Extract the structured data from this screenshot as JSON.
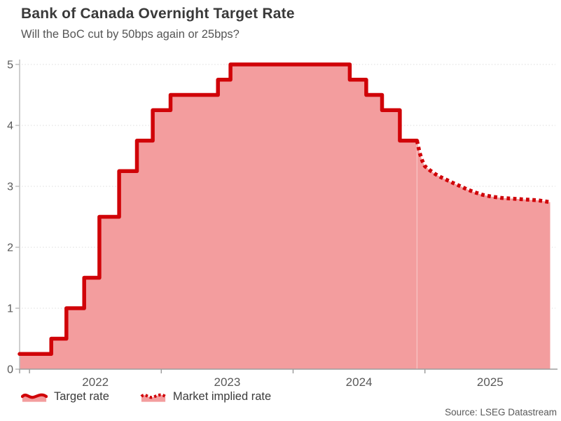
{
  "header": {
    "title": "Bank of Canada Overnight Target Rate",
    "subtitle": "Will the BoC cut by 50bps again or 25bps?"
  },
  "legend": [
    {
      "label": "Target rate",
      "style": "solid"
    },
    {
      "label": "Market implied rate",
      "style": "dotted"
    }
  ],
  "source": "Source: LSEG Datastream",
  "colors": {
    "line": "#d00308",
    "fill": "#f39d9e",
    "grid": "#dcdcdc",
    "axis_y": "#bdbdbd",
    "axis_x": "#9e9e9e",
    "tick_text": "#595959",
    "title_text": "#3a3a3a",
    "subtitle_text": "#555555",
    "legend_text": "#3b3b3b",
    "source_text": "#595959",
    "seam": "#f8c6c6"
  },
  "chart_data": {
    "type": "line",
    "title": "Bank of Canada Overnight Target Rate",
    "subtitle": "Will the BoC cut by 50bps again or 25bps?",
    "xlabel": "",
    "ylabel": "",
    "xlim": [
      2021.925,
      2025.99
    ],
    "ylim": [
      0,
      5
    ],
    "yticks": [
      0,
      1,
      2,
      3,
      4,
      5
    ],
    "xticks": [
      2022,
      2023,
      2024,
      2025
    ],
    "xtick_labels": [
      "2022",
      "2023",
      "2024",
      "2025"
    ],
    "grid": "horizontal-dotted",
    "legend_position": "bottom-left",
    "series": [
      {
        "name": "Target rate",
        "style": "step-solid",
        "fill_under": true,
        "points": [
          [
            2021.925,
            0.25
          ],
          [
            2022.165,
            0.5
          ],
          [
            2022.28,
            1.0
          ],
          [
            2022.415,
            1.5
          ],
          [
            2022.53,
            2.5
          ],
          [
            2022.68,
            3.25
          ],
          [
            2022.815,
            3.75
          ],
          [
            2022.935,
            4.25
          ],
          [
            2023.07,
            4.5
          ],
          [
            2023.43,
            4.75
          ],
          [
            2023.525,
            5.0
          ],
          [
            2024.43,
            4.75
          ],
          [
            2024.555,
            4.5
          ],
          [
            2024.675,
            4.25
          ],
          [
            2024.81,
            3.75
          ],
          [
            2024.94,
            3.75
          ]
        ]
      },
      {
        "name": "Market implied rate",
        "style": "dotted",
        "fill_under": true,
        "points": [
          [
            2024.94,
            3.75
          ],
          [
            2024.96,
            3.55
          ],
          [
            2024.98,
            3.42
          ],
          [
            2025.0,
            3.33
          ],
          [
            2025.04,
            3.26
          ],
          [
            2025.08,
            3.2
          ],
          [
            2025.12,
            3.15
          ],
          [
            2025.17,
            3.1
          ],
          [
            2025.22,
            3.05
          ],
          [
            2025.27,
            3.0
          ],
          [
            2025.32,
            2.95
          ],
          [
            2025.38,
            2.9
          ],
          [
            2025.44,
            2.86
          ],
          [
            2025.51,
            2.83
          ],
          [
            2025.58,
            2.81
          ],
          [
            2025.65,
            2.8
          ],
          [
            2025.72,
            2.79
          ],
          [
            2025.79,
            2.78
          ],
          [
            2025.86,
            2.77
          ],
          [
            2025.95,
            2.74
          ]
        ]
      }
    ]
  }
}
